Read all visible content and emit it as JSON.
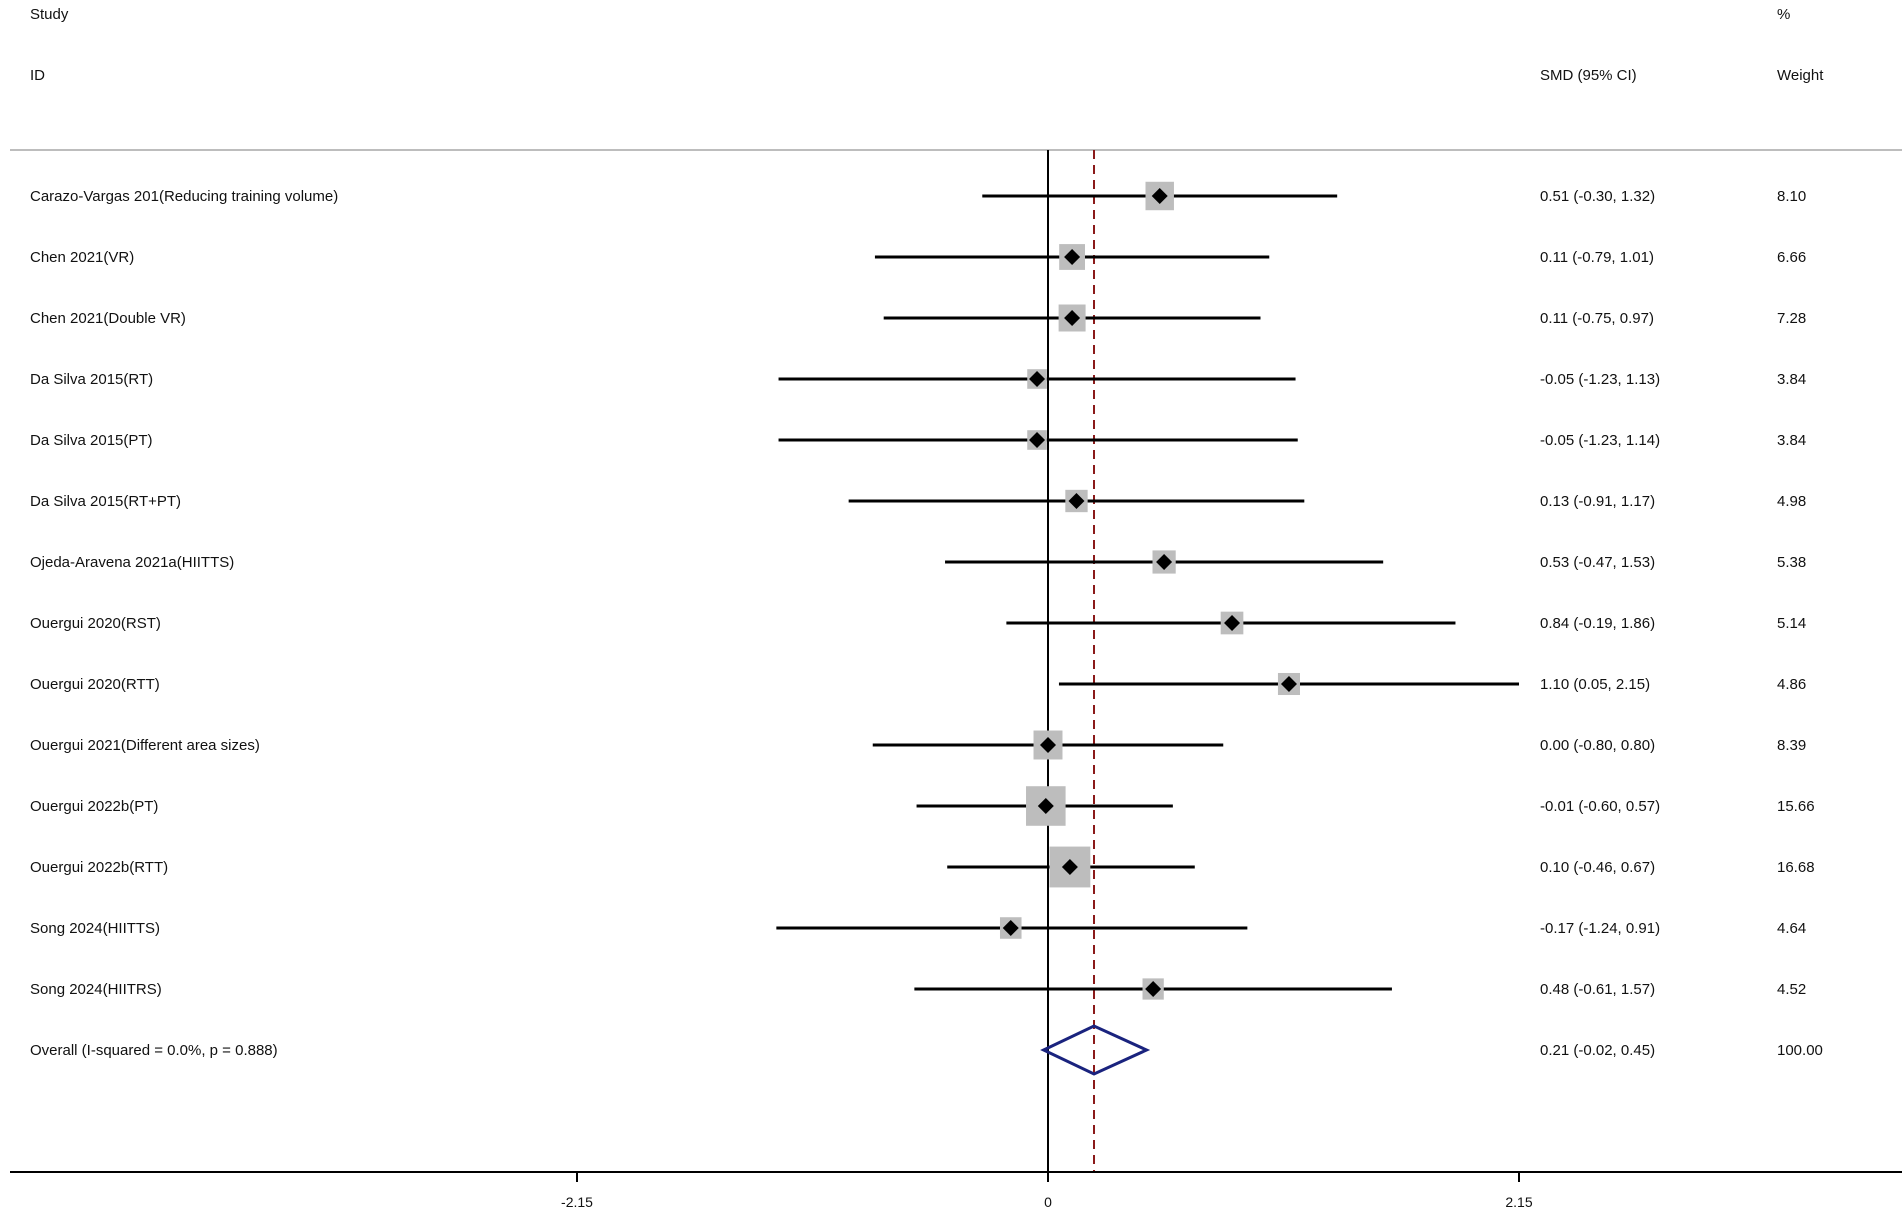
{
  "headers": {
    "study_line1": "Study",
    "study_line2": "ID",
    "effect": "SMD (95% CI)",
    "weight_line1": "%",
    "weight_line2": "Weight"
  },
  "colors": {
    "text": "#111111",
    "ci_line": "#000000",
    "weight_box": "#bdbdbd",
    "point_marker": "#000000",
    "overall_diamond": "#1a237e",
    "overall_line": "#8b1a1a",
    "separator": "#bdbdbd"
  },
  "chart_data": {
    "type": "forest",
    "measure": "SMD (95% CI)",
    "x_ticks": [
      {
        "value": -2.15,
        "label": "-2.15"
      },
      {
        "value": 0,
        "label": "0"
      },
      {
        "value": 2.15,
        "label": "2.15"
      }
    ],
    "xlim": [
      -4.7,
      3.85
    ],
    "null_line": 0,
    "studies": [
      {
        "label": "Carazo-Vargas 201(Reducing training volume)",
        "smd": 0.51,
        "lower": -0.3,
        "upper": 1.32,
        "ci_text": "0.51 (-0.30, 1.32)",
        "weight": 8.1,
        "weight_text": "8.10"
      },
      {
        "label": "Chen 2021(VR)",
        "smd": 0.11,
        "lower": -0.79,
        "upper": 1.01,
        "ci_text": "0.11 (-0.79, 1.01)",
        "weight": 6.66,
        "weight_text": "6.66"
      },
      {
        "label": "Chen 2021(Double VR)",
        "smd": 0.11,
        "lower": -0.75,
        "upper": 0.97,
        "ci_text": "0.11 (-0.75, 0.97)",
        "weight": 7.28,
        "weight_text": "7.28"
      },
      {
        "label": "Da Silva 2015(RT)",
        "smd": -0.05,
        "lower": -1.23,
        "upper": 1.13,
        "ci_text": "-0.05 (-1.23, 1.13)",
        "weight": 3.84,
        "weight_text": "3.84"
      },
      {
        "label": "Da Silva 2015(PT)",
        "smd": -0.05,
        "lower": -1.23,
        "upper": 1.14,
        "ci_text": "-0.05 (-1.23, 1.14)",
        "weight": 3.84,
        "weight_text": "3.84"
      },
      {
        "label": "Da Silva 2015(RT+PT)",
        "smd": 0.13,
        "lower": -0.91,
        "upper": 1.17,
        "ci_text": "0.13 (-0.91, 1.17)",
        "weight": 4.98,
        "weight_text": "4.98"
      },
      {
        "label": "Ojeda-Aravena 2021a(HIITTS)",
        "smd": 0.53,
        "lower": -0.47,
        "upper": 1.53,
        "ci_text": "0.53 (-0.47, 1.53)",
        "weight": 5.38,
        "weight_text": "5.38"
      },
      {
        "label": "Ouergui 2020(RST)",
        "smd": 0.84,
        "lower": -0.19,
        "upper": 1.86,
        "ci_text": "0.84 (-0.19, 1.86)",
        "weight": 5.14,
        "weight_text": "5.14"
      },
      {
        "label": "Ouergui 2020(RTT)",
        "smd": 1.1,
        "lower": 0.05,
        "upper": 2.15,
        "ci_text": "1.10 (0.05, 2.15)",
        "weight": 4.86,
        "weight_text": "4.86"
      },
      {
        "label": "Ouergui 2021(Different area sizes)",
        "smd": 0.0,
        "lower": -0.8,
        "upper": 0.8,
        "ci_text": "0.00 (-0.80, 0.80)",
        "weight": 8.39,
        "weight_text": "8.39"
      },
      {
        "label": "Ouergui 2022b(PT)",
        "smd": -0.01,
        "lower": -0.6,
        "upper": 0.57,
        "ci_text": "-0.01 (-0.60, 0.57)",
        "weight": 15.66,
        "weight_text": "15.66"
      },
      {
        "label": "Ouergui 2022b(RTT)",
        "smd": 0.1,
        "lower": -0.46,
        "upper": 0.67,
        "ci_text": "0.10 (-0.46, 0.67)",
        "weight": 16.68,
        "weight_text": "16.68"
      },
      {
        "label": "Song 2024(HIITTS)",
        "smd": -0.17,
        "lower": -1.24,
        "upper": 0.91,
        "ci_text": "-0.17 (-1.24, 0.91)",
        "weight": 4.64,
        "weight_text": "4.64"
      },
      {
        "label": "Song 2024(HIITRS)",
        "smd": 0.48,
        "lower": -0.61,
        "upper": 1.57,
        "ci_text": "0.48 (-0.61, 1.57)",
        "weight": 4.52,
        "weight_text": "4.52"
      }
    ],
    "overall": {
      "label": "Overall  (I-squared = 0.0%, p = 0.888)",
      "smd": 0.21,
      "lower": -0.02,
      "upper": 0.45,
      "ci_text": "0.21 (-0.02, 0.45)",
      "weight": 100.0,
      "weight_text": "100.00"
    }
  }
}
